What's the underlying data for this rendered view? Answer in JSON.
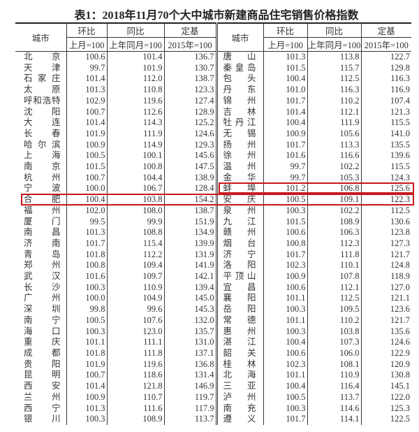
{
  "title": "表1：2018年11月70个大中城市新建商品住宅销售价格指数",
  "headers": {
    "city": "城市",
    "mom": "环比",
    "mom_base": "上月=100",
    "yoy": "同比",
    "yoy_base": "上年同月=100",
    "fixed": "定基",
    "fixed_base": "2015年=100"
  },
  "highlight_color": "#c8161d",
  "highlighted_cities": [
    "合肥",
    "蚌埠"
  ],
  "rows": [
    [
      [
        "北京",
        "100.6",
        "101.4",
        "136.7"
      ],
      [
        "唐山",
        "101.3",
        "113.8",
        "122.7"
      ]
    ],
    [
      [
        "天津",
        "99.7",
        "101.9",
        "130.7"
      ],
      [
        "秦皇岛",
        "101.5",
        "115.7",
        "129.8"
      ]
    ],
    [
      [
        "石家庄",
        "101.4",
        "112.0",
        "138.7"
      ],
      [
        "包头",
        "100.4",
        "112.5",
        "116.3"
      ]
    ],
    [
      [
        "太原",
        "101.3",
        "110.8",
        "123.3"
      ],
      [
        "丹东",
        "101.0",
        "116.3",
        "116.9"
      ]
    ],
    [
      [
        "呼和浩特",
        "102.9",
        "119.6",
        "127.4"
      ],
      [
        "锦州",
        "101.7",
        "110.2",
        "107.4"
      ]
    ],
    [
      [
        "沈阳",
        "100.7",
        "112.6",
        "128.9"
      ],
      [
        "吉林",
        "101.4",
        "112.1",
        "121.3"
      ]
    ],
    [
      [
        "大连",
        "101.4",
        "114.3",
        "125.2"
      ],
      [
        "牡丹江",
        "100.4",
        "111.9",
        "115.5"
      ]
    ],
    [
      [
        "长春",
        "101.9",
        "111.9",
        "124.6"
      ],
      [
        "无锡",
        "100.9",
        "105.6",
        "141.0"
      ]
    ],
    [
      [
        "哈尔滨",
        "100.9",
        "114.9",
        "129.3"
      ],
      [
        "扬州",
        "101.7",
        "113.3",
        "135.5"
      ]
    ],
    [
      [
        "上海",
        "100.5",
        "100.1",
        "145.6"
      ],
      [
        "徐州",
        "101.6",
        "116.6",
        "139.6"
      ]
    ],
    [
      [
        "南京",
        "101.5",
        "100.8",
        "147.5"
      ],
      [
        "温州",
        "99.7",
        "102.2",
        "115.5"
      ]
    ],
    [
      [
        "杭州",
        "100.7",
        "104.4",
        "138.9"
      ],
      [
        "金华",
        "99.7",
        "105.3",
        "124.3"
      ]
    ],
    [
      [
        "宁波",
        "100.0",
        "106.7",
        "128.4"
      ],
      [
        "蚌埠",
        "101.2",
        "106.8",
        "125.6"
      ]
    ],
    [
      [
        "合肥",
        "100.4",
        "103.8",
        "154.2"
      ],
      [
        "安庆",
        "100.5",
        "109.1",
        "122.3"
      ]
    ],
    [
      [
        "福州",
        "102.0",
        "108.0",
        "138.7"
      ],
      [
        "泉州",
        "100.3",
        "102.2",
        "112.5"
      ]
    ],
    [
      [
        "厦门",
        "99.5",
        "99.9",
        "151.9"
      ],
      [
        "九江",
        "101.5",
        "108.9",
        "130.6"
      ]
    ],
    [
      [
        "南昌",
        "101.3",
        "108.8",
        "134.9"
      ],
      [
        "赣州",
        "100.6",
        "106.3",
        "123.8"
      ]
    ],
    [
      [
        "济南",
        "101.7",
        "115.4",
        "139.9"
      ],
      [
        "烟台",
        "100.8",
        "112.3",
        "127.3"
      ]
    ],
    [
      [
        "青岛",
        "101.8",
        "112.2",
        "131.9"
      ],
      [
        "济宁",
        "101.7",
        "111.8",
        "121.7"
      ]
    ],
    [
      [
        "郑州",
        "100.8",
        "109.4",
        "141.9"
      ],
      [
        "洛阳",
        "102.3",
        "110.1",
        "124.8"
      ]
    ],
    [
      [
        "武汉",
        "101.6",
        "109.7",
        "142.1"
      ],
      [
        "平顶山",
        "100.9",
        "107.8",
        "118.9"
      ]
    ],
    [
      [
        "长沙",
        "100.3",
        "110.9",
        "139.4"
      ],
      [
        "宜昌",
        "100.6",
        "112.1",
        "127.0"
      ]
    ],
    [
      [
        "广州",
        "100.0",
        "104.9",
        "145.0"
      ],
      [
        "襄阳",
        "101.1",
        "112.5",
        "121.1"
      ]
    ],
    [
      [
        "深圳",
        "99.8",
        "99.6",
        "145.3"
      ],
      [
        "岳阳",
        "100.3",
        "109.5",
        "123.6"
      ]
    ],
    [
      [
        "南宁",
        "100.5",
        "107.6",
        "132.0"
      ],
      [
        "常德",
        "101.1",
        "110.2",
        "121.7"
      ]
    ],
    [
      [
        "海口",
        "100.3",
        "123.0",
        "135.7"
      ],
      [
        "惠州",
        "100.3",
        "103.8",
        "135.6"
      ]
    ],
    [
      [
        "重庆",
        "101.1",
        "111.1",
        "131.0"
      ],
      [
        "湛江",
        "100.4",
        "107.3",
        "124.6"
      ]
    ],
    [
      [
        "成都",
        "101.8",
        "111.8",
        "137.1"
      ],
      [
        "韶关",
        "100.6",
        "106.0",
        "122.9"
      ]
    ],
    [
      [
        "贵阳",
        "101.9",
        "119.6",
        "136.8"
      ],
      [
        "桂林",
        "102.3",
        "108.1",
        "120.9"
      ]
    ],
    [
      [
        "昆明",
        "100.7",
        "118.6",
        "131.4"
      ],
      [
        "北海",
        "101.1",
        "110.9",
        "130.8"
      ]
    ],
    [
      [
        "西安",
        "101.4",
        "121.8",
        "146.9"
      ],
      [
        "三亚",
        "100.4",
        "116.4",
        "145.1"
      ]
    ],
    [
      [
        "兰州",
        "100.9",
        "110.7",
        "119.7"
      ],
      [
        "泸州",
        "100.5",
        "113.7",
        "122.0"
      ]
    ],
    [
      [
        "西宁",
        "101.3",
        "111.6",
        "117.9"
      ],
      [
        "南充",
        "100.3",
        "114.6",
        "125.3"
      ]
    ],
    [
      [
        "银川",
        "100.3",
        "108.9",
        "113.7"
      ],
      [
        "遵义",
        "101.7",
        "114.1",
        "122.5"
      ]
    ]
  ]
}
